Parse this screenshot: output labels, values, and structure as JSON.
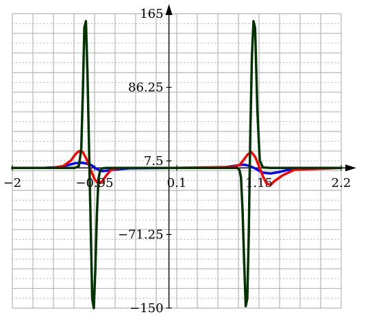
{
  "chart_data": {
    "type": "line",
    "title": "",
    "xlabel": "",
    "ylabel": "",
    "xlim": [
      -2,
      2.2
    ],
    "ylim": [
      -150,
      165
    ],
    "x_ticks": [
      {
        "value": -2,
        "label": "−2"
      },
      {
        "value": -0.95,
        "label": "−0.95"
      },
      {
        "value": 0.1,
        "label": "0.1"
      },
      {
        "value": 1.15,
        "label": "1.15"
      },
      {
        "value": 2.2,
        "label": "2.2"
      }
    ],
    "y_ticks": [
      {
        "value": 165,
        "label": "165"
      },
      {
        "value": 86.25,
        "label": "86.25"
      },
      {
        "value": 7.5,
        "label": "7.5"
      },
      {
        "value": -71.25,
        "label": "−71.25"
      },
      {
        "value": -150,
        "label": "−150"
      }
    ],
    "grid": true,
    "series": [
      {
        "color": "#0000ff",
        "x": [
          -2,
          -1.6,
          -1.4,
          -1.3,
          -1.2,
          -1.1,
          -1.0,
          -0.95,
          -0.9,
          -0.85,
          -0.8,
          -0.7,
          -0.5,
          0.1,
          0.7,
          0.9,
          0.95,
          1.0,
          1.05,
          1.1,
          1.15,
          1.2,
          1.3,
          1.4,
          1.5,
          1.7,
          2.2
        ],
        "y": [
          0,
          0,
          0.8,
          2.8,
          5.0,
          5.5,
          3.5,
          0.5,
          -2.0,
          -3.5,
          -3.0,
          -1.8,
          -0.5,
          0,
          0.5,
          3.0,
          3.5,
          2.8,
          1.3,
          -0.5,
          -3.0,
          -5.0,
          -6.0,
          -4.5,
          -2.5,
          -0.5,
          0
        ]
      },
      {
        "color": "#ff0000",
        "x": [
          -2,
          -1.5,
          -1.35,
          -1.25,
          -1.2,
          -1.15,
          -1.1,
          -1.05,
          -1.0,
          -0.95,
          -0.9,
          -0.85,
          -0.8,
          -0.75,
          -0.7,
          -0.6,
          0.1,
          0.8,
          0.9,
          0.95,
          1.0,
          1.05,
          1.1,
          1.15,
          1.2,
          1.25,
          1.3,
          1.35,
          1.45,
          1.6,
          2.2
        ],
        "y": [
          0,
          0,
          2.0,
          8.0,
          14.0,
          18.0,
          17.0,
          9.0,
          -2.0,
          -12.0,
          -17.0,
          -14.0,
          -8.0,
          -3.0,
          -1.0,
          0,
          0,
          1.0,
          3.0,
          8.0,
          14.0,
          17.0,
          12.0,
          2.0,
          -9.0,
          -17.0,
          -18.0,
          -14.0,
          -8.0,
          -2.0,
          0
        ]
      },
      {
        "color": "#003300",
        "x": [
          -2,
          -1.2,
          -1.15,
          -1.12,
          -1.1,
          -1.08,
          -1.06,
          -1.04,
          -1.02,
          -1.0,
          -0.98,
          -0.96,
          -0.94,
          -0.92,
          -0.9,
          -0.88,
          -0.85,
          -0.8,
          0.1,
          0.87,
          0.9,
          0.92,
          0.94,
          0.96,
          0.98,
          1.0,
          1.02,
          1.04,
          1.06,
          1.08,
          1.1,
          1.13,
          1.16,
          1.2,
          1.3,
          2.2
        ],
        "y": [
          0,
          0,
          2.0,
          20.0,
          80.0,
          150.0,
          157.0,
          100.0,
          20.0,
          -60.0,
          -140.0,
          -150.0,
          -110.0,
          -50.0,
          -12.0,
          -3.0,
          -0.5,
          0,
          0,
          0,
          -2.0,
          -10.0,
          -45.0,
          -100.0,
          -148.0,
          -140.0,
          -70.0,
          40.0,
          120.0,
          157.0,
          150.0,
          60.0,
          8.0,
          0.5,
          0,
          0
        ]
      }
    ]
  }
}
